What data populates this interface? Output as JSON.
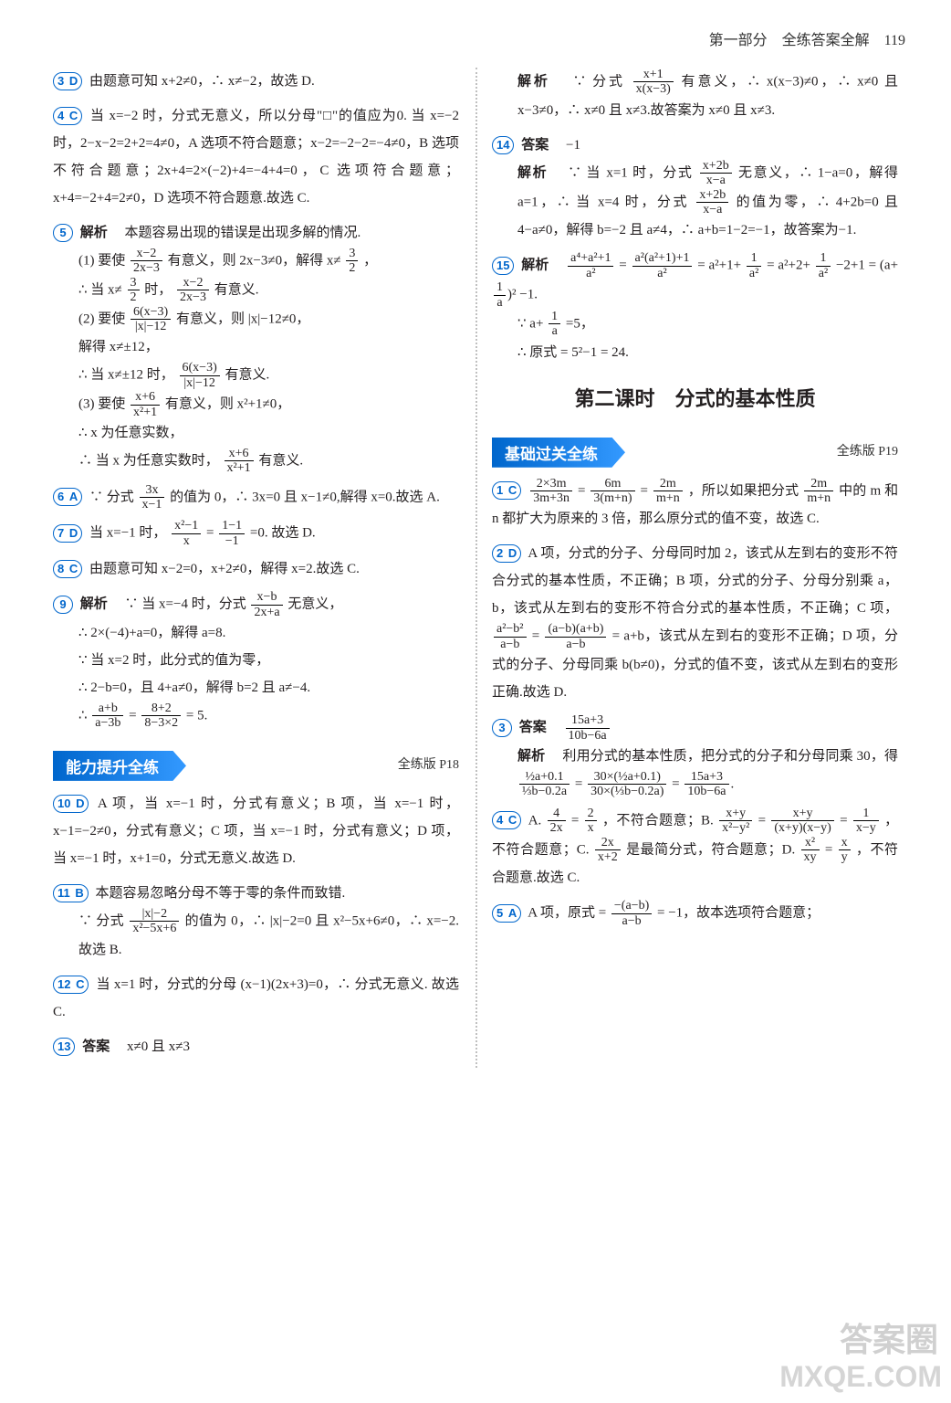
{
  "header": {
    "part": "第一部分　全练答案全解",
    "page": "119"
  },
  "left": {
    "q3": {
      "num": "3",
      "letter": "D",
      "text": "由题意可知 x+2≠0，∴ x≠−2，故选 D."
    },
    "q4": {
      "num": "4",
      "letter": "C",
      "text": "当 x=−2 时，分式无意义，所以分母\"□\"的值应为0. 当 x=−2 时，2−x−2=2+2=4≠0，A 选项不符合题意；x−2=−2−2=−4≠0，B 选项不符合题意；2x+4=2×(−2)+4=−4+4=0，C 选项符合题意；x+4=−2+4=2≠0，D 选项不符合题意.故选 C."
    },
    "q5": {
      "num": "5",
      "label": "解析",
      "intro": "本题容易出现的错误是出现多解的情况.",
      "p1a": "(1) 要使",
      "p1b": "有意义，则 2x−3≠0，解得 x≠",
      "p1c": "，",
      "p1d": "∴ 当 x≠",
      "p1e": "时，",
      "p1f": "有意义.",
      "p2a": "(2) 要使",
      "p2b": "有意义，则 |x|−12≠0，",
      "p2c": "解得 x≠±12，",
      "p2d": "∴ 当 x≠±12 时，",
      "p2e": "有意义.",
      "p3a": "(3) 要使",
      "p3b": "有意义，则 x²+1≠0，",
      "p3c": "∴ x 为任意实数，",
      "p3d": "∴ 当 x 为任意实数时，",
      "p3e": "有意义."
    },
    "q6": {
      "num": "6",
      "letter": "A",
      "t1": "∵ 分式",
      "t2": "的值为 0，∴ 3x=0 且 x−1≠0,解得 x=0.故选 A."
    },
    "q7": {
      "num": "7",
      "letter": "D",
      "t1": "当 x=−1 时，",
      "t2": "=0. 故选 D."
    },
    "q8": {
      "num": "8",
      "letter": "C",
      "text": "由题意可知 x−2=0，x+2≠0，解得 x=2.故选 C."
    },
    "q9": {
      "num": "9",
      "label": "解析",
      "l1a": "∵ 当 x=−4 时，分式",
      "l1b": "无意义，",
      "l2": "∴ 2×(−4)+a=0，解得 a=8.",
      "l3": "∵ 当 x=2 时，此分式的值为零，",
      "l4": "∴ 2−b=0，且 4+a≠0，解得 b=2 且 a≠−4.",
      "l5": "∴"
    },
    "banner1": "能力提升全练",
    "ref1": "全练版 P18",
    "q10": {
      "num": "10",
      "letter": "D",
      "text": "A 项，当 x=−1 时，分式有意义；B 项，当 x=−1 时，x−1=−2≠0，分式有意义；C 项，当 x=−1 时，分式有意义；D 项，当 x=−1 时，x+1=0，分式无意义.故选 D."
    },
    "q11": {
      "num": "11",
      "letter": "B",
      "intro": "本题容易忽略分母不等于零的条件而致错.",
      "l1a": "∵ 分式",
      "l1b": "的值为 0，∴ |x|−2=0 且 x²−5x+6≠0，∴ x=−2.故选 B."
    },
    "q12": {
      "num": "12",
      "letter": "C",
      "text": "当 x=1 时，分式的分母 (x−1)(2x+3)=0，∴ 分式无意义. 故选 C."
    },
    "q13": {
      "num": "13",
      "label": "答案",
      "text": "x≠0 且 x≠3"
    }
  },
  "right": {
    "q13ex": {
      "label": "解析",
      "t1": "∵ 分式",
      "t2": "有意义，∴ x(x−3)≠0，∴ x≠0 且 x−3≠0，∴ x≠0 且 x≠3.故答案为 x≠0 且 x≠3."
    },
    "q14": {
      "num": "14",
      "label": "答案",
      "ans": "−1",
      "ex_label": "解析",
      "l1a": "∵ 当 x=1 时，分式",
      "l1b": "无意义，∴ 1−a=0，解得 a=1，∴ 当 x=4 时，分式",
      "l1c": "的值为零，∴ 4+2b=0 且 4−a≠0，解得 b=−2 且 a≠4，∴ a+b=1−2=−1，故答案为−1."
    },
    "q15": {
      "num": "15",
      "label": "解析",
      "t1": "=",
      "t2": "= a²+1+",
      "t3": "= a²+2+",
      "t4": "−2+1 =",
      "t5": "−1.",
      "l2": "∵ a+",
      "l3": "=5，",
      "l4": "∴ 原式 = 5²−1 = 24."
    },
    "section": "第二课时　分式的基本性质",
    "banner2": "基础过关全练",
    "ref2": "全练版 P19",
    "rq1": {
      "num": "1",
      "letter": "C",
      "t1": "=",
      "t2": "=",
      "t3": "，所以如果把分式",
      "t4": "中的 m 和 n 都扩大为原来的 3 倍，那么原分式的值不变，故选 C."
    },
    "rq2": {
      "num": "2",
      "letter": "D",
      "text1": "A 项，分式的分子、分母同时加 2，该式从左到右的变形不符合分式的基本性质，不正确；B 项，分式的分子、分母分别乘 a，b，该式从左到右的变形不符合分式的基本性质，不正确；C 项，",
      "text2": "=",
      "text3": "= a+b，该式从左到右的变形不正确；D 项，分式的分子、分母同乘 b(b≠0)，分式的值不变，该式从左到右的变形正确.故选 D."
    },
    "rq3": {
      "num": "3",
      "label": "答案",
      "ex_label": "解析",
      "ex": "利用分式的基本性质，把分式的分子和分母同乘 30，得",
      "t1": "=",
      "t2": "="
    },
    "rq4": {
      "num": "4",
      "letter": "C",
      "t1": "A.",
      "t2": "=",
      "t3": "，不符合题意；B.",
      "t4": "=",
      "t5": "=",
      "t6": "，不符合题意；C.",
      "t7": "是最简分式，符合题意；D.",
      "t8": "=",
      "t9": "，不符合题意.故选 C."
    },
    "rq5": {
      "num": "5",
      "letter": "A",
      "t1": "A 项，原式 =",
      "t2": "= −1，故本选项符合题意；"
    }
  },
  "watermark": {
    "line1": "答案圈",
    "line2": "MXQE.COM"
  },
  "colors": {
    "accent": "#0066cc",
    "text": "#231f20",
    "background": "#ffffff"
  }
}
